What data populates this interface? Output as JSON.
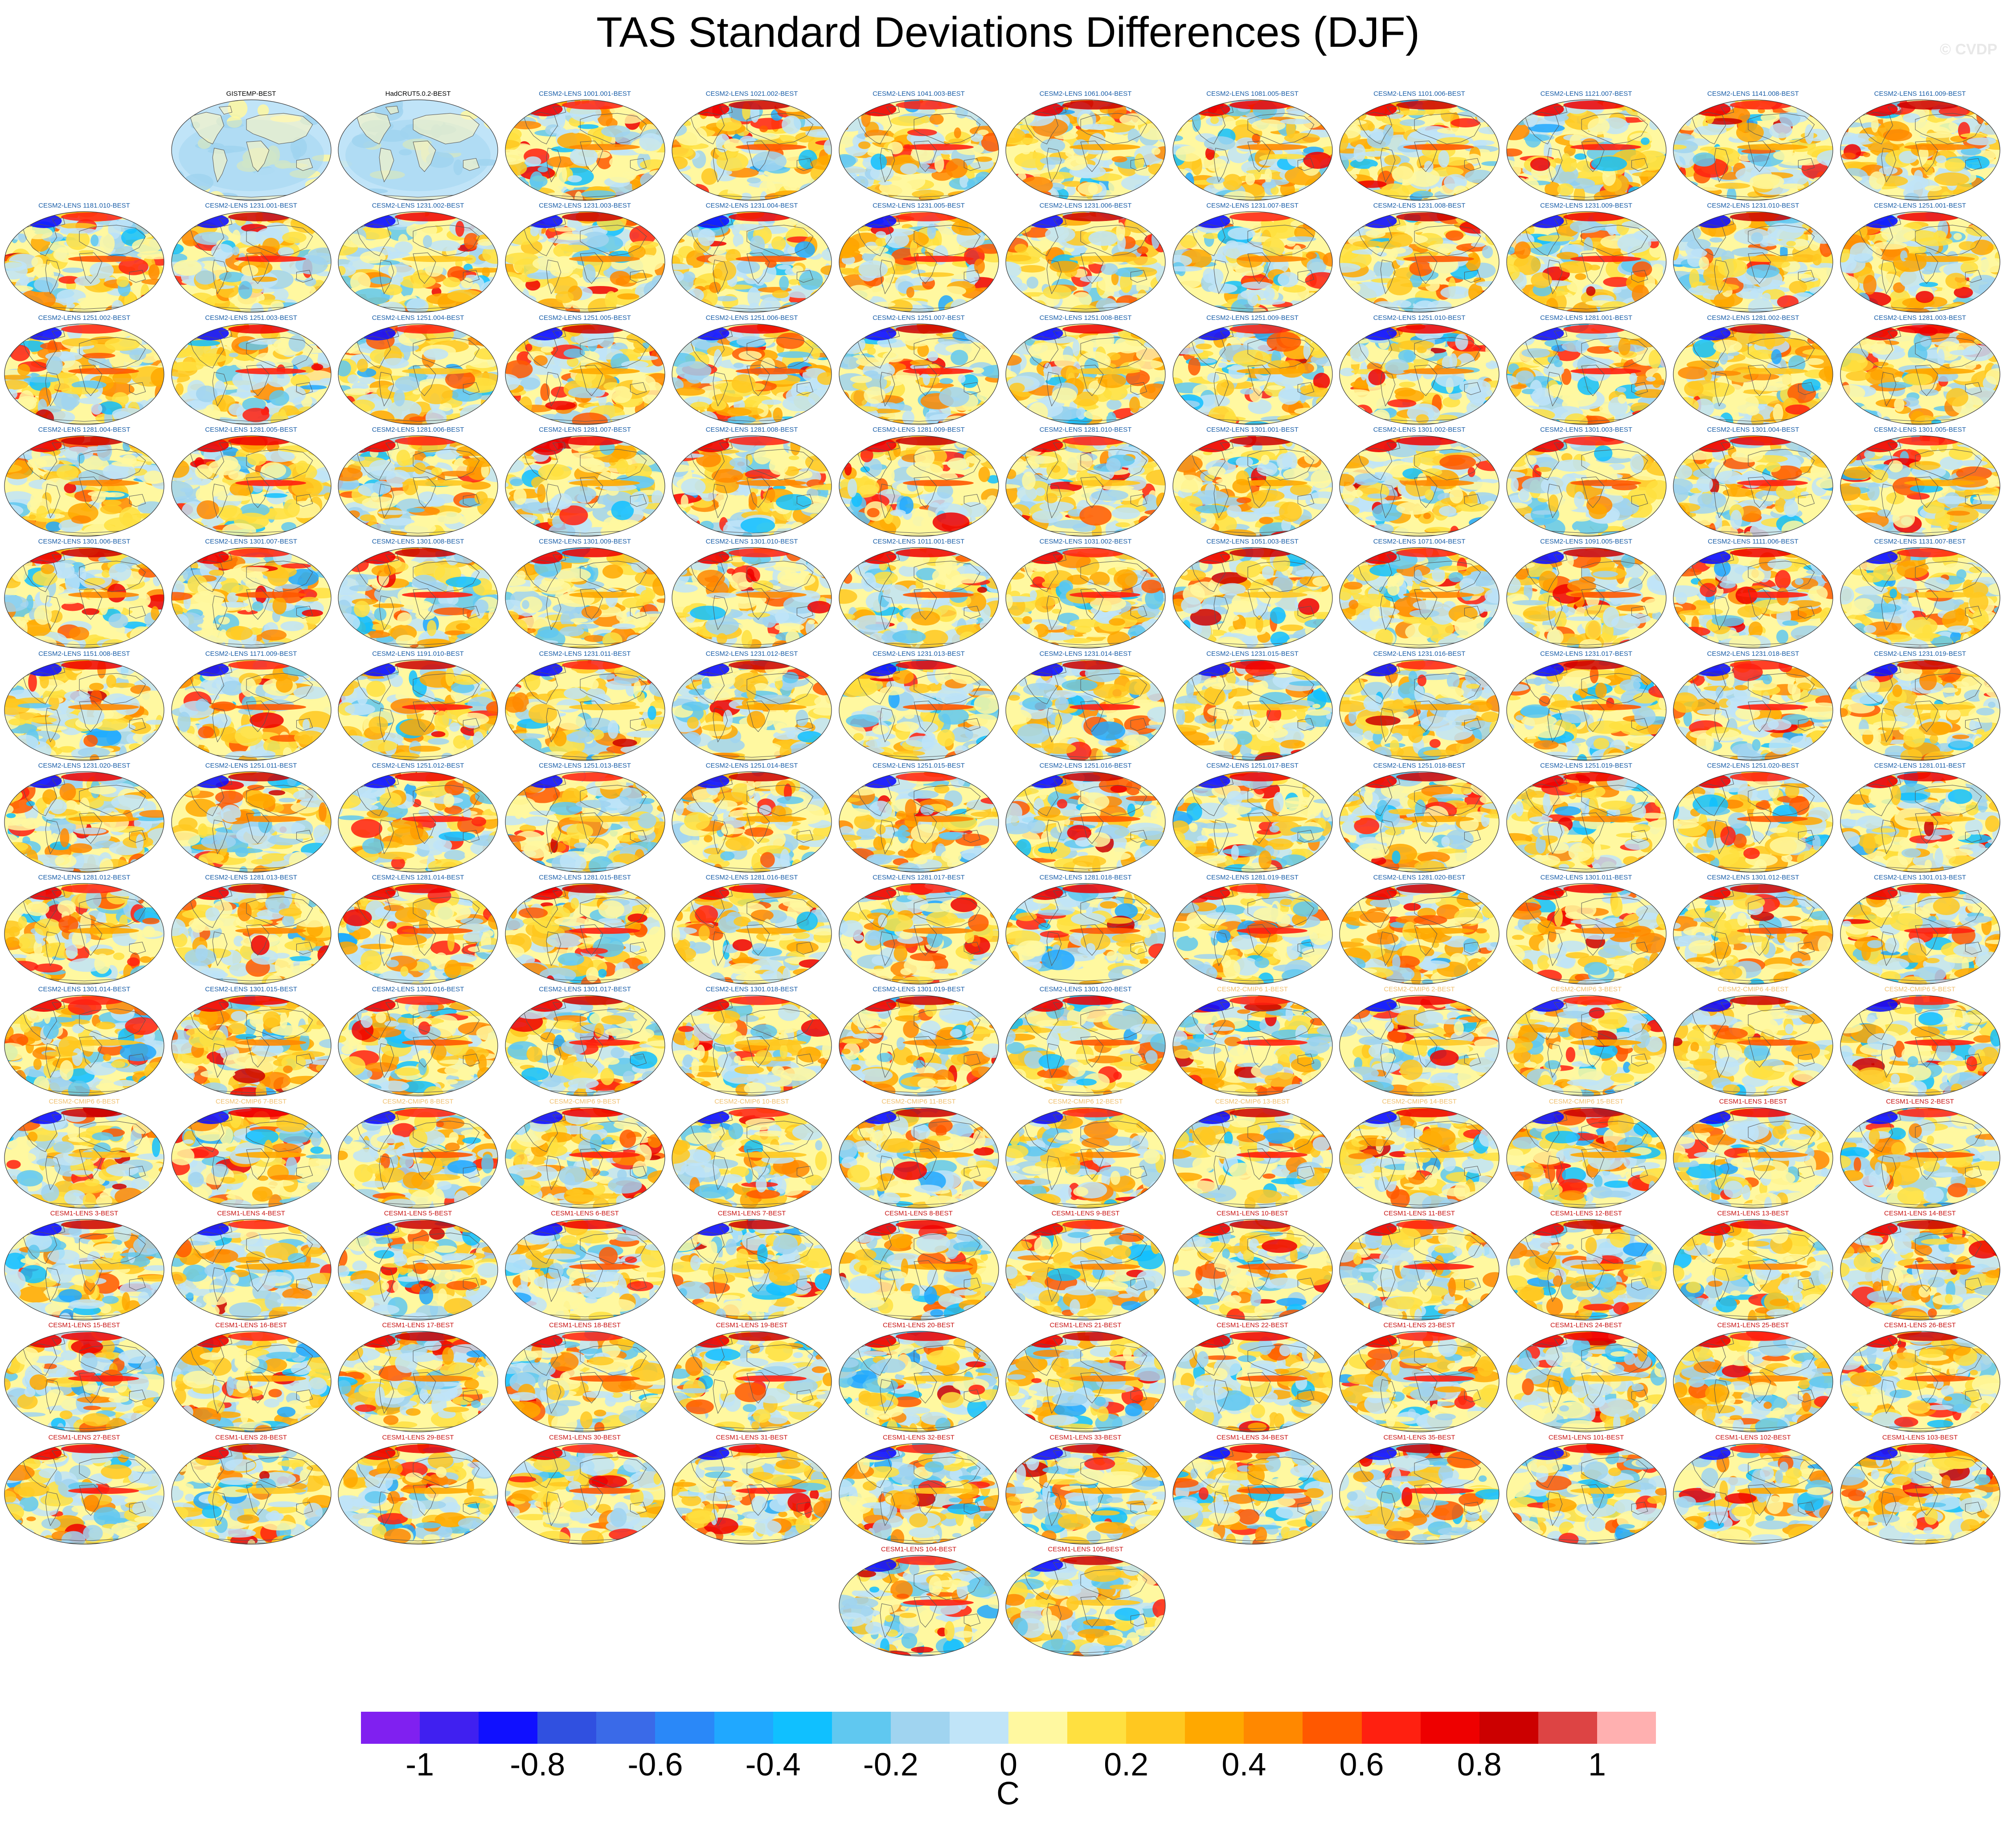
{
  "title": "TAS Standard Deviations Differences (DJF)",
  "watermark": "© CVDP",
  "colorbar": {
    "colors": [
      "#8020f0",
      "#4020f0",
      "#1010ff",
      "#3050e0",
      "#3a6ae8",
      "#2a88f8",
      "#20a8ff",
      "#10c0ff",
      "#60c8f0",
      "#a0d4f0",
      "#c0e4f8",
      "#fff8a0",
      "#ffe040",
      "#ffc820",
      "#ffa800",
      "#ff8800",
      "#ff5800",
      "#ff2010",
      "#ee0000",
      "#cc0000",
      "#dd4444",
      "#ffb0b0"
    ],
    "tick_labels": [
      "-1",
      "-0.8",
      "-0.6",
      "-0.4",
      "-0.2",
      "0",
      "0.2",
      "0.4",
      "0.6",
      "0.8",
      "1"
    ],
    "tick_positions": [
      1,
      3,
      5,
      7,
      9,
      11,
      13,
      15,
      17,
      19,
      21
    ],
    "unit": "C"
  },
  "label_colors": {
    "obs": "#000000",
    "cesm2": "#1a5ea8",
    "cesm2cmip6": "#f0c070",
    "cesm1": "#c81414"
  },
  "chart_data": {
    "type": "map-grid",
    "title": "TAS Standard Deviations Differences (DJF)",
    "colorbar_range": [
      -1,
      1
    ],
    "colorbar_unit": "C",
    "panels": [
      {
        "label": "GISTEMP-BEST",
        "group": "obs"
      },
      {
        "label": "HadCRUT5.0.2-BEST",
        "group": "obs"
      },
      {
        "label": "CESM2-LENS 1001.001-BEST",
        "group": "cesm2"
      },
      {
        "label": "CESM2-LENS 1021.002-BEST",
        "group": "cesm2"
      },
      {
        "label": "CESM2-LENS 1041.003-BEST",
        "group": "cesm2"
      },
      {
        "label": "CESM2-LENS 1061.004-BEST",
        "group": "cesm2"
      },
      {
        "label": "CESM2-LENS 1081.005-BEST",
        "group": "cesm2"
      },
      {
        "label": "CESM2-LENS 1101.006-BEST",
        "group": "cesm2"
      },
      {
        "label": "CESM2-LENS 1121.007-BEST",
        "group": "cesm2"
      },
      {
        "label": "CESM2-LENS 1141.008-BEST",
        "group": "cesm2"
      },
      {
        "label": "CESM2-LENS 1161.009-BEST",
        "group": "cesm2"
      },
      {
        "label": "CESM2-LENS 1181.010-BEST",
        "group": "cesm2"
      },
      {
        "label": "CESM2-LENS 1231.001-BEST",
        "group": "cesm2"
      },
      {
        "label": "CESM2-LENS 1231.002-BEST",
        "group": "cesm2"
      },
      {
        "label": "CESM2-LENS 1231.003-BEST",
        "group": "cesm2"
      },
      {
        "label": "CESM2-LENS 1231.004-BEST",
        "group": "cesm2"
      },
      {
        "label": "CESM2-LENS 1231.005-BEST",
        "group": "cesm2"
      },
      {
        "label": "CESM2-LENS 1231.006-BEST",
        "group": "cesm2"
      },
      {
        "label": "CESM2-LENS 1231.007-BEST",
        "group": "cesm2"
      },
      {
        "label": "CESM2-LENS 1231.008-BEST",
        "group": "cesm2"
      },
      {
        "label": "CESM2-LENS 1231.009-BEST",
        "group": "cesm2"
      },
      {
        "label": "CESM2-LENS 1231.010-BEST",
        "group": "cesm2"
      },
      {
        "label": "CESM2-LENS 1251.001-BEST",
        "group": "cesm2"
      },
      {
        "label": "CESM2-LENS 1251.002-BEST",
        "group": "cesm2"
      },
      {
        "label": "CESM2-LENS 1251.003-BEST",
        "group": "cesm2"
      },
      {
        "label": "CESM2-LENS 1251.004-BEST",
        "group": "cesm2"
      },
      {
        "label": "CESM2-LENS 1251.005-BEST",
        "group": "cesm2"
      },
      {
        "label": "CESM2-LENS 1251.006-BEST",
        "group": "cesm2"
      },
      {
        "label": "CESM2-LENS 1251.007-BEST",
        "group": "cesm2"
      },
      {
        "label": "CESM2-LENS 1251.008-BEST",
        "group": "cesm2"
      },
      {
        "label": "CESM2-LENS 1251.009-BEST",
        "group": "cesm2"
      },
      {
        "label": "CESM2-LENS 1251.010-BEST",
        "group": "cesm2"
      },
      {
        "label": "CESM2-LENS 1281.001-BEST",
        "group": "cesm2"
      },
      {
        "label": "CESM2-LENS 1281.002-BEST",
        "group": "cesm2"
      },
      {
        "label": "CESM2-LENS 1281.003-BEST",
        "group": "cesm2"
      },
      {
        "label": "CESM2-LENS 1281.004-BEST",
        "group": "cesm2"
      },
      {
        "label": "CESM2-LENS 1281.005-BEST",
        "group": "cesm2"
      },
      {
        "label": "CESM2-LENS 1281.006-BEST",
        "group": "cesm2"
      },
      {
        "label": "CESM2-LENS 1281.007-BEST",
        "group": "cesm2"
      },
      {
        "label": "CESM2-LENS 1281.008-BEST",
        "group": "cesm2"
      },
      {
        "label": "CESM2-LENS 1281.009-BEST",
        "group": "cesm2"
      },
      {
        "label": "CESM2-LENS 1281.010-BEST",
        "group": "cesm2"
      },
      {
        "label": "CESM2-LENS 1301.001-BEST",
        "group": "cesm2"
      },
      {
        "label": "CESM2-LENS 1301.002-BEST",
        "group": "cesm2"
      },
      {
        "label": "CESM2-LENS 1301.003-BEST",
        "group": "cesm2"
      },
      {
        "label": "CESM2-LENS 1301.004-BEST",
        "group": "cesm2"
      },
      {
        "label": "CESM2-LENS 1301.005-BEST",
        "group": "cesm2"
      },
      {
        "label": "CESM2-LENS 1301.006-BEST",
        "group": "cesm2"
      },
      {
        "label": "CESM2-LENS 1301.007-BEST",
        "group": "cesm2"
      },
      {
        "label": "CESM2-LENS 1301.008-BEST",
        "group": "cesm2"
      },
      {
        "label": "CESM2-LENS 1301.009-BEST",
        "group": "cesm2"
      },
      {
        "label": "CESM2-LENS 1301.010-BEST",
        "group": "cesm2"
      },
      {
        "label": "CESM2-LENS 1011.001-BEST",
        "group": "cesm2"
      },
      {
        "label": "CESM2-LENS 1031.002-BEST",
        "group": "cesm2"
      },
      {
        "label": "CESM2-LENS 1051.003-BEST",
        "group": "cesm2"
      },
      {
        "label": "CESM2-LENS 1071.004-BEST",
        "group": "cesm2"
      },
      {
        "label": "CESM2-LENS 1091.005-BEST",
        "group": "cesm2"
      },
      {
        "label": "CESM2-LENS 1111.006-BEST",
        "group": "cesm2"
      },
      {
        "label": "CESM2-LENS 1131.007-BEST",
        "group": "cesm2"
      },
      {
        "label": "CESM2-LENS 1151.008-BEST",
        "group": "cesm2"
      },
      {
        "label": "CESM2-LENS 1171.009-BEST",
        "group": "cesm2"
      },
      {
        "label": "CESM2-LENS 1191.010-BEST",
        "group": "cesm2"
      },
      {
        "label": "CESM2-LENS 1231.011-BEST",
        "group": "cesm2"
      },
      {
        "label": "CESM2-LENS 1231.012-BEST",
        "group": "cesm2"
      },
      {
        "label": "CESM2-LENS 1231.013-BEST",
        "group": "cesm2"
      },
      {
        "label": "CESM2-LENS 1231.014-BEST",
        "group": "cesm2"
      },
      {
        "label": "CESM2-LENS 1231.015-BEST",
        "group": "cesm2"
      },
      {
        "label": "CESM2-LENS 1231.016-BEST",
        "group": "cesm2"
      },
      {
        "label": "CESM2-LENS 1231.017-BEST",
        "group": "cesm2"
      },
      {
        "label": "CESM2-LENS 1231.018-BEST",
        "group": "cesm2"
      },
      {
        "label": "CESM2-LENS 1231.019-BEST",
        "group": "cesm2"
      },
      {
        "label": "CESM2-LENS 1231.020-BEST",
        "group": "cesm2"
      },
      {
        "label": "CESM2-LENS 1251.011-BEST",
        "group": "cesm2"
      },
      {
        "label": "CESM2-LENS 1251.012-BEST",
        "group": "cesm2"
      },
      {
        "label": "CESM2-LENS 1251.013-BEST",
        "group": "cesm2"
      },
      {
        "label": "CESM2-LENS 1251.014-BEST",
        "group": "cesm2"
      },
      {
        "label": "CESM2-LENS 1251.015-BEST",
        "group": "cesm2"
      },
      {
        "label": "CESM2-LENS 1251.016-BEST",
        "group": "cesm2"
      },
      {
        "label": "CESM2-LENS 1251.017-BEST",
        "group": "cesm2"
      },
      {
        "label": "CESM2-LENS 1251.018-BEST",
        "group": "cesm2"
      },
      {
        "label": "CESM2-LENS 1251.019-BEST",
        "group": "cesm2"
      },
      {
        "label": "CESM2-LENS 1251.020-BEST",
        "group": "cesm2"
      },
      {
        "label": "CESM2-LENS 1281.011-BEST",
        "group": "cesm2"
      },
      {
        "label": "CESM2-LENS 1281.012-BEST",
        "group": "cesm2"
      },
      {
        "label": "CESM2-LENS 1281.013-BEST",
        "group": "cesm2"
      },
      {
        "label": "CESM2-LENS 1281.014-BEST",
        "group": "cesm2"
      },
      {
        "label": "CESM2-LENS 1281.015-BEST",
        "group": "cesm2"
      },
      {
        "label": "CESM2-LENS 1281.016-BEST",
        "group": "cesm2"
      },
      {
        "label": "CESM2-LENS 1281.017-BEST",
        "group": "cesm2"
      },
      {
        "label": "CESM2-LENS 1281.018-BEST",
        "group": "cesm2"
      },
      {
        "label": "CESM2-LENS 1281.019-BEST",
        "group": "cesm2"
      },
      {
        "label": "CESM2-LENS 1281.020-BEST",
        "group": "cesm2"
      },
      {
        "label": "CESM2-LENS 1301.011-BEST",
        "group": "cesm2"
      },
      {
        "label": "CESM2-LENS 1301.012-BEST",
        "group": "cesm2"
      },
      {
        "label": "CESM2-LENS 1301.013-BEST",
        "group": "cesm2"
      },
      {
        "label": "CESM2-LENS 1301.014-BEST",
        "group": "cesm2"
      },
      {
        "label": "CESM2-LENS 1301.015-BEST",
        "group": "cesm2"
      },
      {
        "label": "CESM2-LENS 1301.016-BEST",
        "group": "cesm2"
      },
      {
        "label": "CESM2-LENS 1301.017-BEST",
        "group": "cesm2"
      },
      {
        "label": "CESM2-LENS 1301.018-BEST",
        "group": "cesm2"
      },
      {
        "label": "CESM2-LENS 1301.019-BEST",
        "group": "cesm2"
      },
      {
        "label": "CESM2-LENS 1301.020-BEST",
        "group": "cesm2"
      },
      {
        "label": "CESM2-CMIP6 1-BEST",
        "group": "cesm2cmip6"
      },
      {
        "label": "CESM2-CMIP6 2-BEST",
        "group": "cesm2cmip6"
      },
      {
        "label": "CESM2-CMIP6 3-BEST",
        "group": "cesm2cmip6"
      },
      {
        "label": "CESM2-CMIP6 4-BEST",
        "group": "cesm2cmip6"
      },
      {
        "label": "CESM2-CMIP6 5-BEST",
        "group": "cesm2cmip6"
      },
      {
        "label": "CESM2-CMIP6 6-BEST",
        "group": "cesm2cmip6"
      },
      {
        "label": "CESM2-CMIP6 7-BEST",
        "group": "cesm2cmip6"
      },
      {
        "label": "CESM2-CMIP6 8-BEST",
        "group": "cesm2cmip6"
      },
      {
        "label": "CESM2-CMIP6 9-BEST",
        "group": "cesm2cmip6"
      },
      {
        "label": "CESM2-CMIP6 10-BEST",
        "group": "cesm2cmip6"
      },
      {
        "label": "CESM2-CMIP6 11-BEST",
        "group": "cesm2cmip6"
      },
      {
        "label": "CESM2-CMIP6 12-BEST",
        "group": "cesm2cmip6"
      },
      {
        "label": "CESM2-CMIP6 13-BEST",
        "group": "cesm2cmip6"
      },
      {
        "label": "CESM2-CMIP6 14-BEST",
        "group": "cesm2cmip6"
      },
      {
        "label": "CESM2-CMIP6 15-BEST",
        "group": "cesm2cmip6"
      },
      {
        "label": "CESM1-LENS 1-BEST",
        "group": "cesm1"
      },
      {
        "label": "CESM1-LENS 2-BEST",
        "group": "cesm1"
      },
      {
        "label": "CESM1-LENS 3-BEST",
        "group": "cesm1"
      },
      {
        "label": "CESM1-LENS 4-BEST",
        "group": "cesm1"
      },
      {
        "label": "CESM1-LENS 5-BEST",
        "group": "cesm1"
      },
      {
        "label": "CESM1-LENS 6-BEST",
        "group": "cesm1"
      },
      {
        "label": "CESM1-LENS 7-BEST",
        "group": "cesm1"
      },
      {
        "label": "CESM1-LENS 8-BEST",
        "group": "cesm1"
      },
      {
        "label": "CESM1-LENS 9-BEST",
        "group": "cesm1"
      },
      {
        "label": "CESM1-LENS 10-BEST",
        "group": "cesm1"
      },
      {
        "label": "CESM1-LENS 11-BEST",
        "group": "cesm1"
      },
      {
        "label": "CESM1-LENS 12-BEST",
        "group": "cesm1"
      },
      {
        "label": "CESM1-LENS 13-BEST",
        "group": "cesm1"
      },
      {
        "label": "CESM1-LENS 14-BEST",
        "group": "cesm1"
      },
      {
        "label": "CESM1-LENS 15-BEST",
        "group": "cesm1"
      },
      {
        "label": "CESM1-LENS 16-BEST",
        "group": "cesm1"
      },
      {
        "label": "CESM1-LENS 17-BEST",
        "group": "cesm1"
      },
      {
        "label": "CESM1-LENS 18-BEST",
        "group": "cesm1"
      },
      {
        "label": "CESM1-LENS 19-BEST",
        "group": "cesm1"
      },
      {
        "label": "CESM1-LENS 20-BEST",
        "group": "cesm1"
      },
      {
        "label": "CESM1-LENS 21-BEST",
        "group": "cesm1"
      },
      {
        "label": "CESM1-LENS 22-BEST",
        "group": "cesm1"
      },
      {
        "label": "CESM1-LENS 23-BEST",
        "group": "cesm1"
      },
      {
        "label": "CESM1-LENS 24-BEST",
        "group": "cesm1"
      },
      {
        "label": "CESM1-LENS 25-BEST",
        "group": "cesm1"
      },
      {
        "label": "CESM1-LENS 26-BEST",
        "group": "cesm1"
      },
      {
        "label": "CESM1-LENS 27-BEST",
        "group": "cesm1"
      },
      {
        "label": "CESM1-LENS 28-BEST",
        "group": "cesm1"
      },
      {
        "label": "CESM1-LENS 29-BEST",
        "group": "cesm1"
      },
      {
        "label": "CESM1-LENS 30-BEST",
        "group": "cesm1"
      },
      {
        "label": "CESM1-LENS 31-BEST",
        "group": "cesm1"
      },
      {
        "label": "CESM1-LENS 32-BEST",
        "group": "cesm1"
      },
      {
        "label": "CESM1-LENS 33-BEST",
        "group": "cesm1"
      },
      {
        "label": "CESM1-LENS 34-BEST",
        "group": "cesm1"
      },
      {
        "label": "CESM1-LENS 35-BEST",
        "group": "cesm1"
      },
      {
        "label": "CESM1-LENS 101-BEST",
        "group": "cesm1"
      },
      {
        "label": "CESM1-LENS 102-BEST",
        "group": "cesm1"
      },
      {
        "label": "CESM1-LENS 103-BEST",
        "group": "cesm1"
      },
      {
        "label": "CESM1-LENS 104-BEST",
        "group": "cesm1"
      },
      {
        "label": "CESM1-LENS 105-BEST",
        "group": "cesm1"
      }
    ]
  }
}
